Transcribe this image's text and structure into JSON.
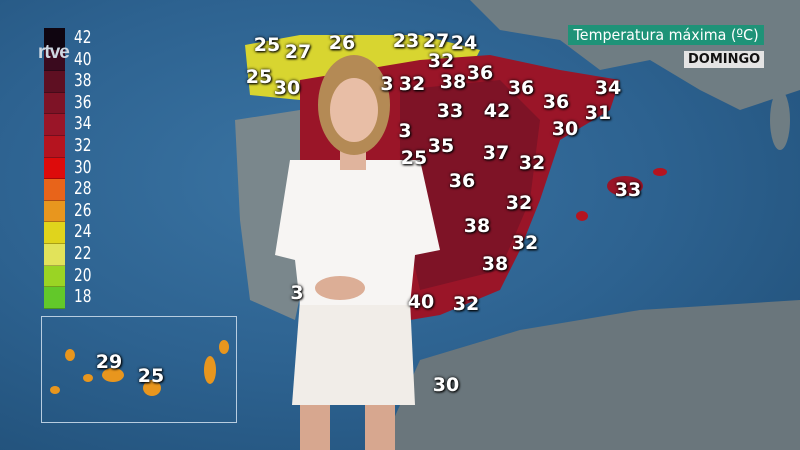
{
  "broadcaster": "rtve",
  "title": "Temperatura máxima (ºC)",
  "day": "DOMINGO",
  "legend": {
    "labels": [
      "42",
      "40",
      "38",
      "36",
      "34",
      "32",
      "30",
      "28",
      "26",
      "24",
      "22",
      "20",
      "18"
    ],
    "colors": [
      "#0f0510",
      "#3a0a1e",
      "#5e0f22",
      "#7e1326",
      "#9a1528",
      "#b5141f",
      "#dd0b0b",
      "#e8641a",
      "#e8961e",
      "#e0d41c",
      "#e2e35a",
      "#9ad424",
      "#62c82a"
    ]
  },
  "temperatures": [
    "25",
    "27",
    "26",
    "23",
    "27",
    "24",
    "32",
    "25",
    "30",
    "3",
    "32",
    "38",
    "36",
    "36",
    "36",
    "34",
    "33",
    "42",
    "31",
    "30",
    "3",
    "35",
    "37",
    "32",
    "25",
    "36",
    "32",
    "33",
    "38",
    "32",
    "38",
    "3",
    "40",
    "32",
    "30"
  ],
  "canary_temperatures": [
    "29",
    "25"
  ],
  "colors": {
    "sea": "#2d6290",
    "land": "#6b7a82",
    "title_bg": "#1f9378",
    "hot": "#9a1528"
  }
}
